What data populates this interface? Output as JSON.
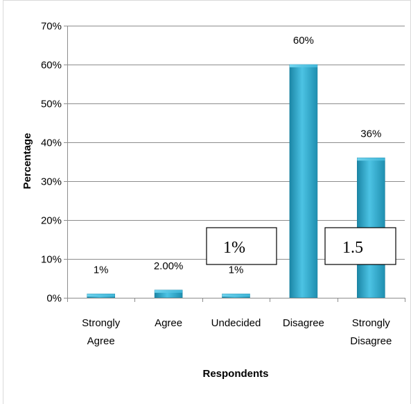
{
  "chart_data": {
    "type": "bar",
    "title": "",
    "xlabel": "Respondents",
    "ylabel": "Percentage",
    "ylim": [
      0,
      70
    ],
    "ytick_step": 10,
    "ytick_labels": [
      "0%",
      "10%",
      "20%",
      "30%",
      "40%",
      "50%",
      "60%",
      "70%"
    ],
    "grid": true,
    "legend": "none",
    "categories": [
      [
        "Strongly",
        "Agree"
      ],
      [
        "Agree"
      ],
      [
        "Undecided"
      ],
      [
        "Disagree"
      ],
      [
        "Strongly",
        "Disagree"
      ]
    ],
    "values": [
      1,
      2,
      1,
      60,
      36
    ],
    "data_labels": [
      "1%",
      "2.00%",
      "1%",
      "60%",
      "36%"
    ],
    "bar_color": "#2fa8cc",
    "annotations": [
      {
        "text": "1%",
        "near_category": 2
      },
      {
        "text": "1.5",
        "near_category": 4
      }
    ]
  }
}
